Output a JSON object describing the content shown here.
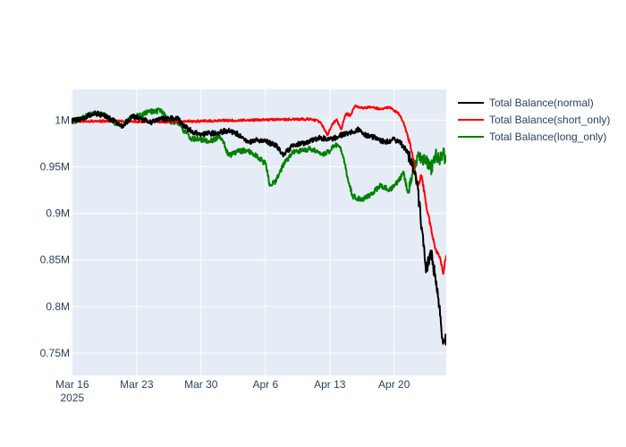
{
  "chart_data": {
    "type": "line",
    "title": "",
    "xlabel": "",
    "ylabel": "",
    "x_range": [
      "2025-03-15T22:00",
      "2025-04-25T16:00"
    ],
    "ylim": [
      726000,
      1033000
    ],
    "x_ticks": [
      {
        "date": "2025-03-16",
        "label": "Mar 16",
        "sublabel": "2025"
      },
      {
        "date": "2025-03-23",
        "label": "Mar 23",
        "sublabel": ""
      },
      {
        "date": "2025-03-30",
        "label": "Mar 30",
        "sublabel": ""
      },
      {
        "date": "2025-04-06",
        "label": "Apr 6",
        "sublabel": ""
      },
      {
        "date": "2025-04-13",
        "label": "Apr 13",
        "sublabel": ""
      },
      {
        "date": "2025-04-20",
        "label": "Apr 20",
        "sublabel": ""
      }
    ],
    "y_ticks": [
      {
        "value": 750000,
        "label": "0.75M"
      },
      {
        "value": 800000,
        "label": "0.8M"
      },
      {
        "value": 850000,
        "label": "0.85M"
      },
      {
        "value": 900000,
        "label": "0.9M"
      },
      {
        "value": 950000,
        "label": "0.95M"
      },
      {
        "value": 1000000,
        "label": "1M"
      }
    ],
    "grid": true,
    "legend_position": "top-right",
    "plot_background": "#e5ecf6",
    "series": [
      {
        "name": "Total Balance(normal)",
        "color": "#000000",
        "x": [
          "2025-03-15T22:00",
          "2025-03-17T00:00",
          "2025-03-18T00:00",
          "2025-03-18T12:00",
          "2025-03-19T12:00",
          "2025-03-20T12:00",
          "2025-03-21T12:00",
          "2025-03-22T12:00",
          "2025-03-23T12:00",
          "2025-03-24T12:00",
          "2025-03-25T12:00",
          "2025-03-26T12:00",
          "2025-03-27T12:00",
          "2025-03-28T00:00",
          "2025-03-29T00:00",
          "2025-03-30T00:00",
          "2025-03-31T00:00",
          "2025-04-01T00:00",
          "2025-04-02T00:00",
          "2025-04-03T00:00",
          "2025-04-04T00:00",
          "2025-04-05T00:00",
          "2025-04-06T00:00",
          "2025-04-07T00:00",
          "2025-04-08T00:00",
          "2025-04-09T00:00",
          "2025-04-10T00:00",
          "2025-04-11T00:00",
          "2025-04-12T00:00",
          "2025-04-13T00:00",
          "2025-04-14T00:00",
          "2025-04-15T00:00",
          "2025-04-16T00:00",
          "2025-04-17T00:00",
          "2025-04-18T00:00",
          "2025-04-19T00:00",
          "2025-04-20T00:00",
          "2025-04-20T18:00",
          "2025-04-21T12:00",
          "2025-04-22T00:00",
          "2025-04-22T12:00",
          "2025-04-23T00:00",
          "2025-04-23T12:00",
          "2025-04-24T00:00",
          "2025-04-24T12:00",
          "2025-04-25T00:00",
          "2025-04-25T08:00",
          "2025-04-25T16:00"
        ],
        "values": [
          999000,
          1001000,
          1006000,
          1007000,
          1005000,
          999000,
          993000,
          1004000,
          1001000,
          998000,
          1001000,
          1002000,
          1001000,
          995000,
          988000,
          985000,
          986000,
          987000,
          989000,
          985000,
          976000,
          979000,
          977000,
          974000,
          963000,
          973000,
          975000,
          978000,
          981000,
          979000,
          983000,
          986000,
          990000,
          983000,
          981000,
          976000,
          980000,
          975000,
          965000,
          955000,
          932000,
          885000,
          840000,
          860000,
          830000,
          790000,
          760000,
          765000
        ]
      },
      {
        "name": "Total Balance(short_only)",
        "color": "#ff0000",
        "x": [
          "2025-03-15T22:00",
          "2025-03-20T00:00",
          "2025-03-25T00:00",
          "2025-03-30T00:00",
          "2025-04-04T00:00",
          "2025-04-09T00:00",
          "2025-04-11T00:00",
          "2025-04-12T00:00",
          "2025-04-12T18:00",
          "2025-04-13T06:00",
          "2025-04-13T18:00",
          "2025-04-14T06:00",
          "2025-04-14T18:00",
          "2025-04-15T06:00",
          "2025-04-15T18:00",
          "2025-04-16T12:00",
          "2025-04-17T12:00",
          "2025-04-18T12:00",
          "2025-04-19T12:00",
          "2025-04-20T12:00",
          "2025-04-21T00:00",
          "2025-04-21T12:00",
          "2025-04-22T00:00",
          "2025-04-22T12:00",
          "2025-04-23T00:00",
          "2025-04-23T12:00",
          "2025-04-24T00:00",
          "2025-04-24T12:00",
          "2025-04-25T00:00",
          "2025-04-25T08:00",
          "2025-04-25T16:00"
        ],
        "values": [
          999000,
          999000,
          998000,
          999000,
          1000000,
          1001000,
          1001000,
          998000,
          984000,
          995000,
          1001000,
          990000,
          1007000,
          1005000,
          1015000,
          1013000,
          1014000,
          1012000,
          1014000,
          1007000,
          998000,
          982000,
          962000,
          930000,
          940000,
          908000,
          885000,
          862000,
          853000,
          835000,
          855000
        ]
      },
      {
        "name": "Total Balance(long_only)",
        "color": "#008000",
        "x": [
          "2025-03-15T22:00",
          "2025-03-17T00:00",
          "2025-03-18T00:00",
          "2025-03-18T12:00",
          "2025-03-19T12:00",
          "2025-03-20T12:00",
          "2025-03-21T12:00",
          "2025-03-22T12:00",
          "2025-03-23T12:00",
          "2025-03-24T12:00",
          "2025-03-25T00:00",
          "2025-03-25T12:00",
          "2025-03-26T12:00",
          "2025-03-27T12:00",
          "2025-03-28T00:00",
          "2025-03-29T00:00",
          "2025-03-30T00:00",
          "2025-03-31T00:00",
          "2025-04-01T00:00",
          "2025-04-01T12:00",
          "2025-04-02T00:00",
          "2025-04-03T00:00",
          "2025-04-04T00:00",
          "2025-04-05T00:00",
          "2025-04-06T00:00",
          "2025-04-06T12:00",
          "2025-04-07T00:00",
          "2025-04-08T00:00",
          "2025-04-09T00:00",
          "2025-04-10T00:00",
          "2025-04-11T00:00",
          "2025-04-12T00:00",
          "2025-04-13T00:00",
          "2025-04-13T12:00",
          "2025-04-14T00:00",
          "2025-04-14T12:00",
          "2025-04-15T00:00",
          "2025-04-15T12:00",
          "2025-04-16T12:00",
          "2025-04-17T12:00",
          "2025-04-18T12:00",
          "2025-04-19T12:00",
          "2025-04-20T12:00",
          "2025-04-21T00:00",
          "2025-04-21T12:00",
          "2025-04-22T00:00",
          "2025-04-22T12:00",
          "2025-04-23T12:00",
          "2025-04-24T00:00",
          "2025-04-24T12:00",
          "2025-04-25T00:00",
          "2025-04-25T08:00",
          "2025-04-25T16:00"
        ],
        "values": [
          999000,
          1001000,
          1007000,
          1008000,
          1005000,
          998000,
          995000,
          1004000,
          1005000,
          1010000,
          1008000,
          1012000,
          999000,
          998000,
          990000,
          980000,
          979000,
          978000,
          982000,
          975000,
          962000,
          966000,
          968000,
          962000,
          953000,
          930000,
          933000,
          953000,
          965000,
          968000,
          969000,
          963000,
          966000,
          973000,
          972000,
          960000,
          935000,
          918000,
          915000,
          920000,
          930000,
          925000,
          934000,
          945000,
          922000,
          942000,
          962000,
          958000,
          948000,
          962000,
          958000,
          966000,
          955000
        ]
      }
    ]
  }
}
